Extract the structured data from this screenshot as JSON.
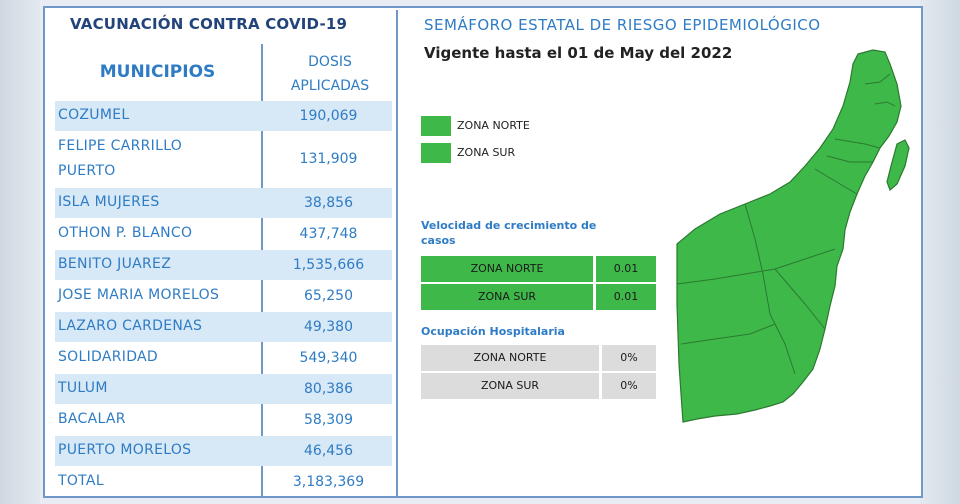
{
  "left": {
    "title": "VACUNACIÓN CONTRA COVID-19",
    "header_municipios": "MUNICIPIOS",
    "header_dosis_1": "DOSIS",
    "header_dosis_2": "APLICADAS",
    "rows": [
      {
        "municipio": "COZUMEL",
        "dosis": "190,069"
      },
      {
        "municipio": "FELIPE CARRILLO",
        "municipio_2": "PUERTO",
        "dosis": "131,909"
      },
      {
        "municipio": "ISLA MUJERES",
        "dosis": "38,856"
      },
      {
        "municipio": "OTHON P. BLANCO",
        "dosis": "437,748"
      },
      {
        "municipio": "BENITO JUAREZ",
        "dosis": "1,535,666"
      },
      {
        "municipio": "JOSE MARIA MORELOS",
        "dosis": "65,250"
      },
      {
        "municipio": "LAZARO CARDENAS",
        "dosis": "49,380"
      },
      {
        "municipio": "SOLIDARIDAD",
        "dosis": "549,340"
      },
      {
        "municipio": "TULUM",
        "dosis": "80,386"
      },
      {
        "municipio": "BACALAR",
        "dosis": "58,309"
      },
      {
        "municipio": "PUERTO MORELOS",
        "dosis": "46,456"
      },
      {
        "municipio": "TOTAL",
        "dosis": "3,183,369"
      }
    ]
  },
  "right": {
    "title": "SEMÁFORO ESTATAL DE RIESGO EPIDEMIOLÓGICO",
    "subtitle": "Vigente hasta el 01 de May del 2022",
    "legend": [
      "ZONA NORTE",
      "ZONA SUR"
    ],
    "velocidad_title_1": "Velocidad de crecimiento de",
    "velocidad_title_2": "casos",
    "velocidad": [
      {
        "zona": "ZONA NORTE",
        "valor": "0.01"
      },
      {
        "zona": "ZONA SUR",
        "valor": "0.01"
      }
    ],
    "ocupacion_title": "Ocupación Hospitalaria",
    "ocupacion": [
      {
        "zona": "ZONA NORTE",
        "valor": "0%"
      },
      {
        "zona": "ZONA SUR",
        "valor": "0%"
      }
    ]
  },
  "colors": {
    "zone_green": "#3fb84a",
    "header_blue": "#23447a",
    "text_blue": "#2f7cc4",
    "row_shade": "#d7e8f6",
    "border_blue": "#6f98c9",
    "occupancy_grey": "#dcdcdc"
  }
}
